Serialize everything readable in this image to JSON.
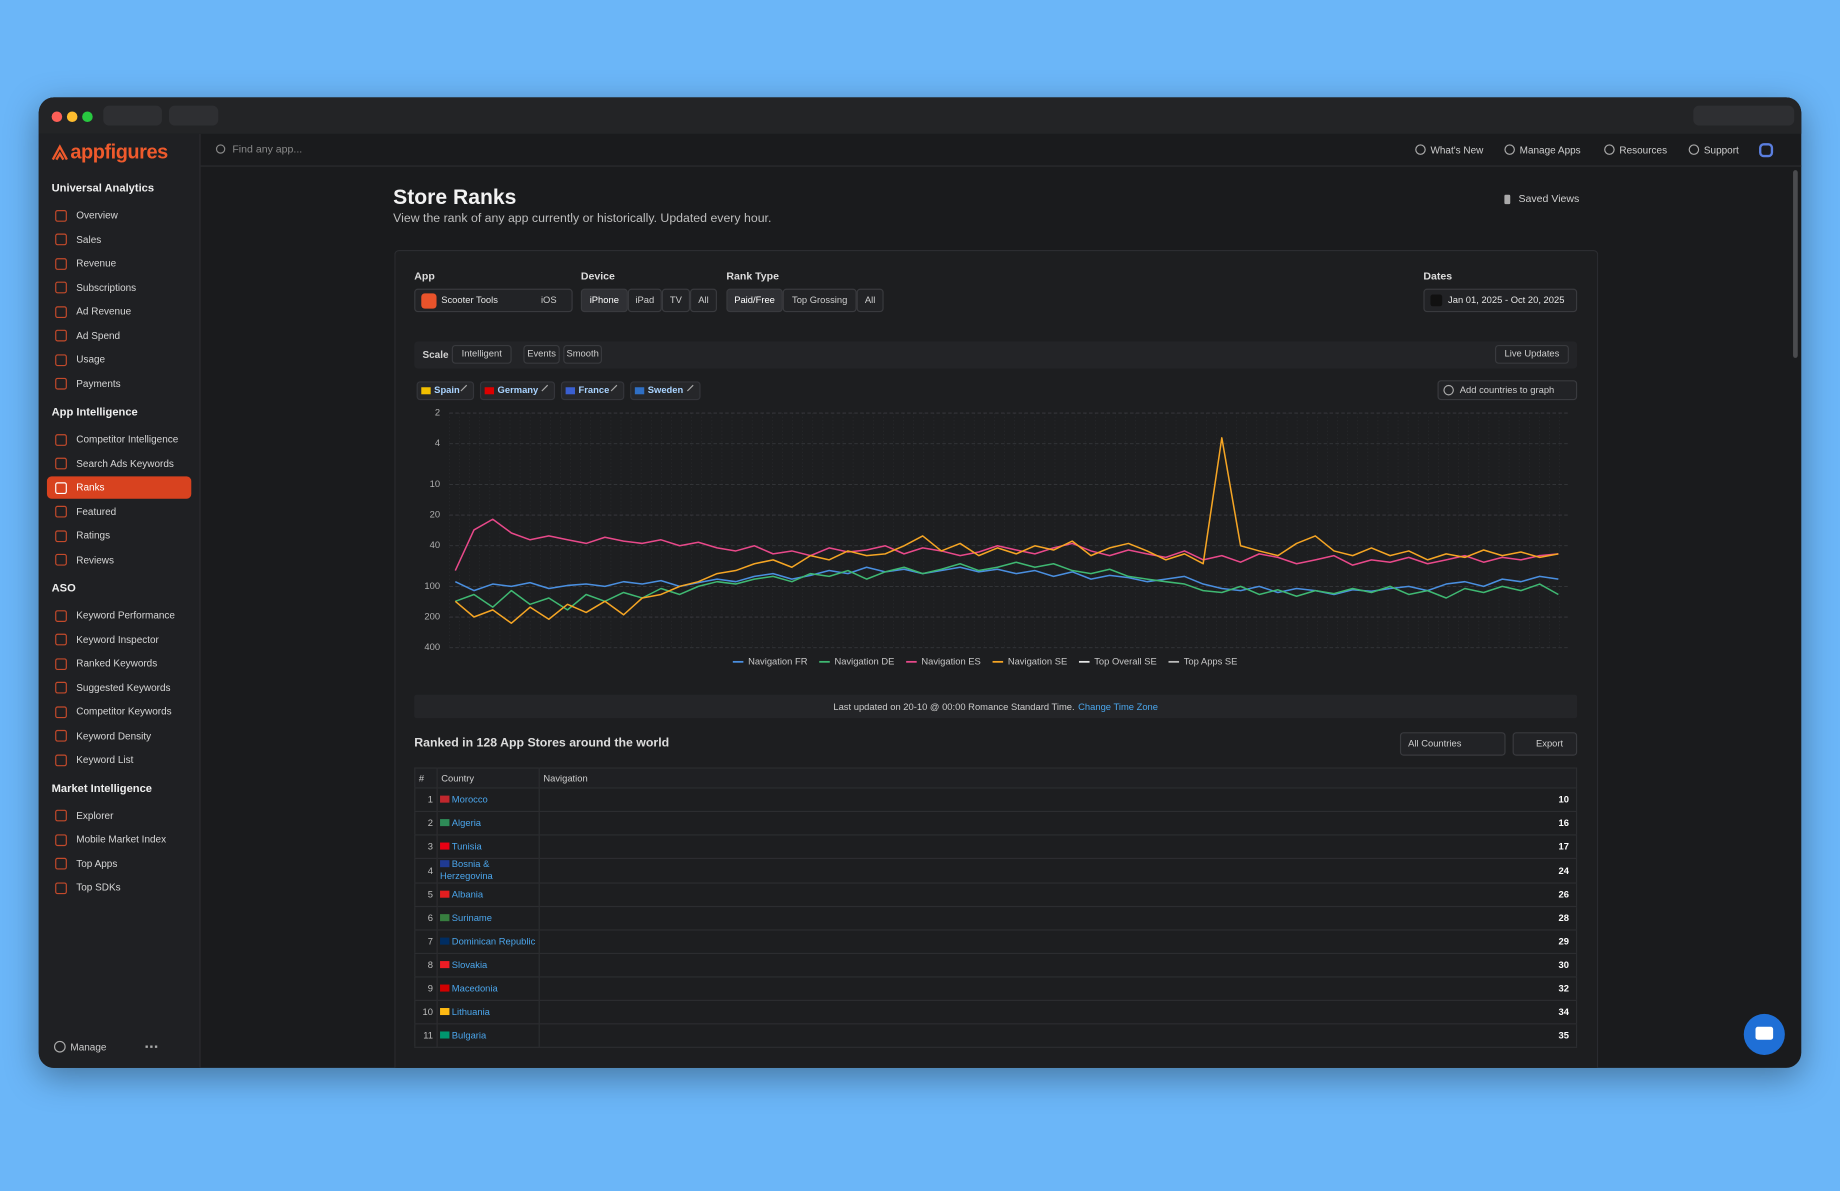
{
  "logo": "appfigures",
  "search_placeholder": "Find any app...",
  "top_nav": [
    "What's New",
    "Manage Apps",
    "Resources",
    "Support"
  ],
  "sidebar": {
    "sections": [
      {
        "title": "Universal Analytics",
        "items": [
          {
            "label": "Overview"
          },
          {
            "label": "Sales"
          },
          {
            "label": "Revenue"
          },
          {
            "label": "Subscriptions"
          },
          {
            "label": "Ad Revenue"
          },
          {
            "label": "Ad Spend"
          },
          {
            "label": "Usage"
          },
          {
            "label": "Payments"
          }
        ]
      },
      {
        "title": "App Intelligence",
        "items": [
          {
            "label": "Competitor Intelligence"
          },
          {
            "label": "Search Ads Keywords"
          },
          {
            "label": "Ranks",
            "active": true
          },
          {
            "label": "Featured"
          },
          {
            "label": "Ratings"
          },
          {
            "label": "Reviews"
          }
        ]
      },
      {
        "title": "ASO",
        "items": [
          {
            "label": "Keyword Performance"
          },
          {
            "label": "Keyword Inspector"
          },
          {
            "label": "Ranked Keywords"
          },
          {
            "label": "Suggested Keywords"
          },
          {
            "label": "Competitor Keywords"
          },
          {
            "label": "Keyword Density"
          },
          {
            "label": "Keyword List"
          }
        ]
      },
      {
        "title": "Market Intelligence",
        "items": [
          {
            "label": "Explorer"
          },
          {
            "label": "Mobile Market Index"
          },
          {
            "label": "Top Apps"
          },
          {
            "label": "Top SDKs"
          }
        ]
      }
    ],
    "footer": "Manage"
  },
  "header": {
    "title": "Store Ranks",
    "subtitle": "View the rank of any app currently or historically. Updated every hour.",
    "saved_views": "Saved Views"
  },
  "filters": {
    "app": {
      "label": "App",
      "value": "Scooter Tools",
      "platform": "iOS"
    },
    "device": {
      "label": "Device",
      "options": [
        "iPhone",
        "iPad",
        "TV",
        "All"
      ],
      "selected": 0
    },
    "rank_type": {
      "label": "Rank Type",
      "options": [
        "Paid/Free",
        "Top Grossing",
        "All"
      ],
      "selected": 0
    },
    "dates": {
      "label": "Dates",
      "value": "Jan 01, 2025 - Oct 20, 2025"
    }
  },
  "toolbar": {
    "scale_label": "Scale",
    "scale": "Intelligent",
    "buttons": [
      "Events",
      "Smooth"
    ],
    "live_updates": "Live Updates"
  },
  "countries": {
    "chips": [
      "Spain",
      "Germany",
      "France",
      "Sweden"
    ],
    "add": "Add countries to graph"
  },
  "chart_data": {
    "type": "line",
    "y_scale": "log",
    "y_reversed": true,
    "grid": true,
    "ylim": [
      2,
      400
    ],
    "yticks": [
      2,
      4,
      10,
      20,
      40,
      100,
      200,
      400
    ],
    "series": [
      {
        "name": "Navigation FR",
        "color": "#4a8fe0",
        "values": [
          90,
          110,
          95,
          100,
          92,
          105,
          98,
          95,
          100,
          90,
          95,
          88,
          100,
          92,
          85,
          90,
          80,
          75,
          85,
          78,
          70,
          75,
          65,
          72,
          68,
          75,
          70,
          65,
          72,
          68,
          75,
          70,
          80,
          72,
          85,
          78,
          82,
          90,
          85,
          80,
          95,
          105,
          110,
          100,
          115,
          105,
          110,
          120,
          108,
          112,
          105,
          100,
          110,
          95,
          90,
          100,
          85,
          90,
          80,
          85
        ]
      },
      {
        "name": "Navigation DE",
        "color": "#3fb872",
        "values": [
          140,
          120,
          160,
          110,
          150,
          130,
          170,
          120,
          140,
          115,
          130,
          105,
          120,
          100,
          90,
          95,
          85,
          80,
          90,
          75,
          80,
          70,
          85,
          72,
          65,
          75,
          68,
          60,
          70,
          65,
          58,
          65,
          60,
          70,
          75,
          68,
          80,
          85,
          90,
          95,
          110,
          115,
          100,
          120,
          108,
          125,
          110,
          118,
          105,
          115,
          100,
          120,
          110,
          130,
          105,
          115,
          100,
          110,
          95,
          120
        ]
      },
      {
        "name": "Navigation ES",
        "color": "#e8498a",
        "values": [
          70,
          28,
          22,
          30,
          35,
          32,
          35,
          38,
          33,
          36,
          38,
          35,
          40,
          37,
          42,
          45,
          40,
          48,
          45,
          50,
          42,
          46,
          44,
          40,
          48,
          42,
          45,
          50,
          46,
          40,
          44,
          48,
          42,
          38,
          45,
          50,
          44,
          48,
          52,
          45,
          55,
          50,
          58,
          48,
          52,
          60,
          55,
          50,
          62,
          55,
          58,
          52,
          60,
          55,
          50,
          58,
          52,
          55,
          50,
          48
        ]
      },
      {
        "name": "Navigation SE",
        "color": "#f5a524",
        "values": [
          140,
          200,
          170,
          230,
          160,
          210,
          150,
          180,
          140,
          190,
          130,
          120,
          100,
          90,
          75,
          70,
          60,
          55,
          65,
          50,
          55,
          45,
          50,
          48,
          40,
          32,
          45,
          38,
          50,
          42,
          48,
          40,
          44,
          36,
          50,
          42,
          38,
          45,
          55,
          48,
          60,
          3.5,
          40,
          45,
          50,
          38,
          32,
          45,
          50,
          42,
          50,
          45,
          55,
          48,
          52,
          44,
          50,
          46,
          52,
          48
        ]
      },
      {
        "name": "Top Overall SE",
        "color": "#e6e6e6",
        "values": [
          null,
          null,
          null,
          null,
          null,
          null,
          null,
          null,
          null,
          null,
          null,
          null,
          null,
          null,
          null,
          null,
          null,
          null,
          null,
          null,
          null,
          null,
          null,
          null,
          null,
          null,
          null,
          null,
          null,
          null,
          null,
          null,
          null,
          null,
          null,
          null,
          null,
          null,
          null,
          null,
          null,
          null,
          null,
          null,
          null,
          null,
          null,
          null,
          null,
          null,
          null,
          null,
          null,
          null,
          null,
          null,
          null,
          null,
          null,
          null
        ]
      },
      {
        "name": "Top Apps SE",
        "color": "#bdbdbd",
        "values": [
          null,
          null,
          null,
          null,
          null,
          null,
          null,
          null,
          null,
          null,
          null,
          null,
          null,
          null,
          null,
          null,
          null,
          null,
          null,
          null,
          null,
          null,
          null,
          null,
          null,
          null,
          null,
          null,
          null,
          null,
          null,
          null,
          null,
          null,
          null,
          null,
          null,
          null,
          null,
          null,
          null,
          null,
          null,
          null,
          null,
          null,
          null,
          null,
          null,
          null,
          null,
          null,
          null,
          null,
          null,
          null,
          null,
          null,
          null,
          null
        ]
      }
    ]
  },
  "updated": {
    "text": "Last updated on 20-10 @ 00:00 Romance Standard Time.",
    "link": "Change Time Zone"
  },
  "table": {
    "title": "Ranked in 128 App Stores around the world",
    "filter": "All Countries",
    "export": "Export",
    "columns": [
      "#",
      "Country",
      "Navigation"
    ],
    "rows": [
      [
        1,
        "Morocco",
        10
      ],
      [
        2,
        "Algeria",
        16
      ],
      [
        3,
        "Tunisia",
        17
      ],
      [
        4,
        "Bosnia & Herzegovina",
        24
      ],
      [
        5,
        "Albania",
        26
      ],
      [
        6,
        "Suriname",
        28
      ],
      [
        7,
        "Dominican Republic",
        29
      ],
      [
        8,
        "Slovakia",
        30
      ],
      [
        9,
        "Macedonia",
        32
      ],
      [
        10,
        "Lithuania",
        34
      ],
      [
        11,
        "Bulgaria",
        35
      ]
    ]
  }
}
